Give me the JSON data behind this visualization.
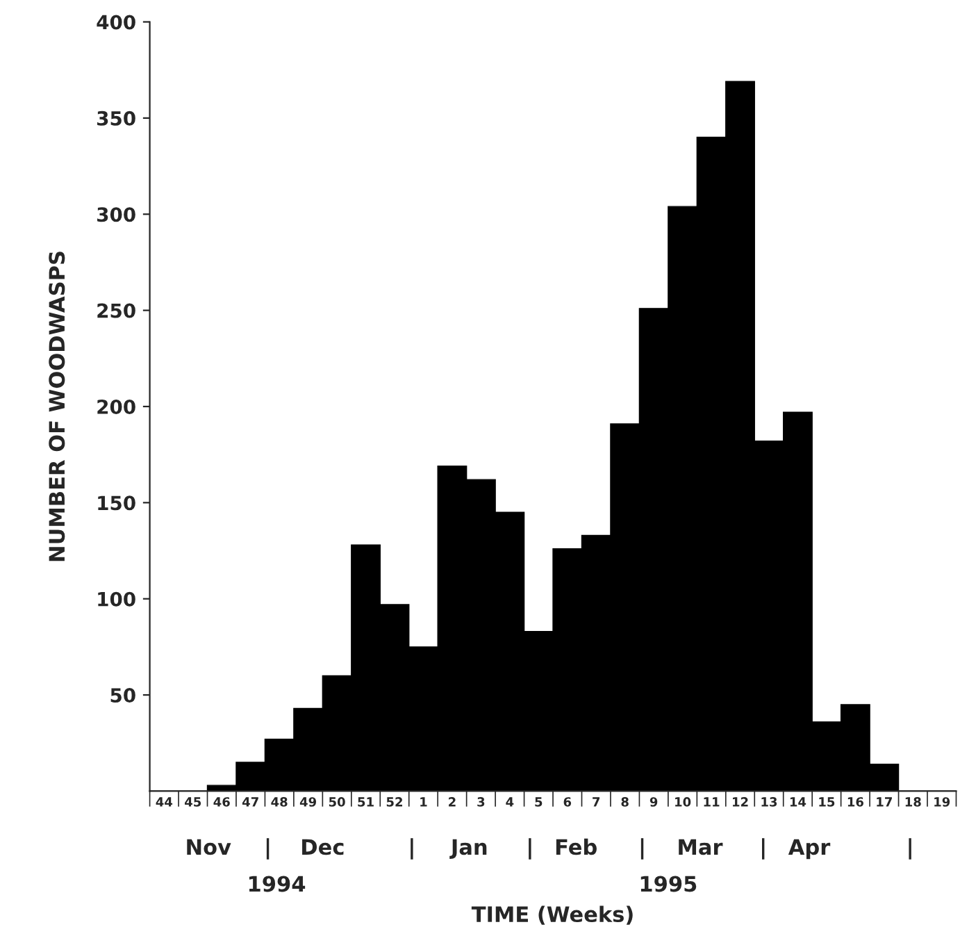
{
  "chart_data": {
    "type": "bar",
    "xlabel": "TIME (Weeks)",
    "ylabel": "NUMBER OF WOODWASPS",
    "categories": [
      "44",
      "45",
      "46",
      "47",
      "48",
      "49",
      "50",
      "51",
      "52",
      "1",
      "2",
      "3",
      "4",
      "5",
      "6",
      "7",
      "8",
      "9",
      "10",
      "11",
      "12",
      "13",
      "14",
      "15",
      "16",
      "17",
      "18",
      "19"
    ],
    "values": [
      0,
      0,
      3,
      15,
      27,
      43,
      60,
      128,
      97,
      75,
      169,
      162,
      145,
      83,
      126,
      133,
      191,
      251,
      304,
      340,
      369,
      182,
      197,
      36,
      45,
      14,
      0,
      0
    ],
    "color": "#000000",
    "ylim": [
      0,
      400
    ],
    "yticks": [
      50,
      100,
      150,
      200,
      250,
      300,
      350,
      400
    ],
    "grid": false,
    "legend": false,
    "annotations": [
      "Nov",
      "|",
      "Dec",
      "|",
      "Jan",
      "|",
      "Feb",
      "|",
      "Mar",
      "|",
      "Apr",
      "|",
      "1994",
      "1995"
    ]
  }
}
